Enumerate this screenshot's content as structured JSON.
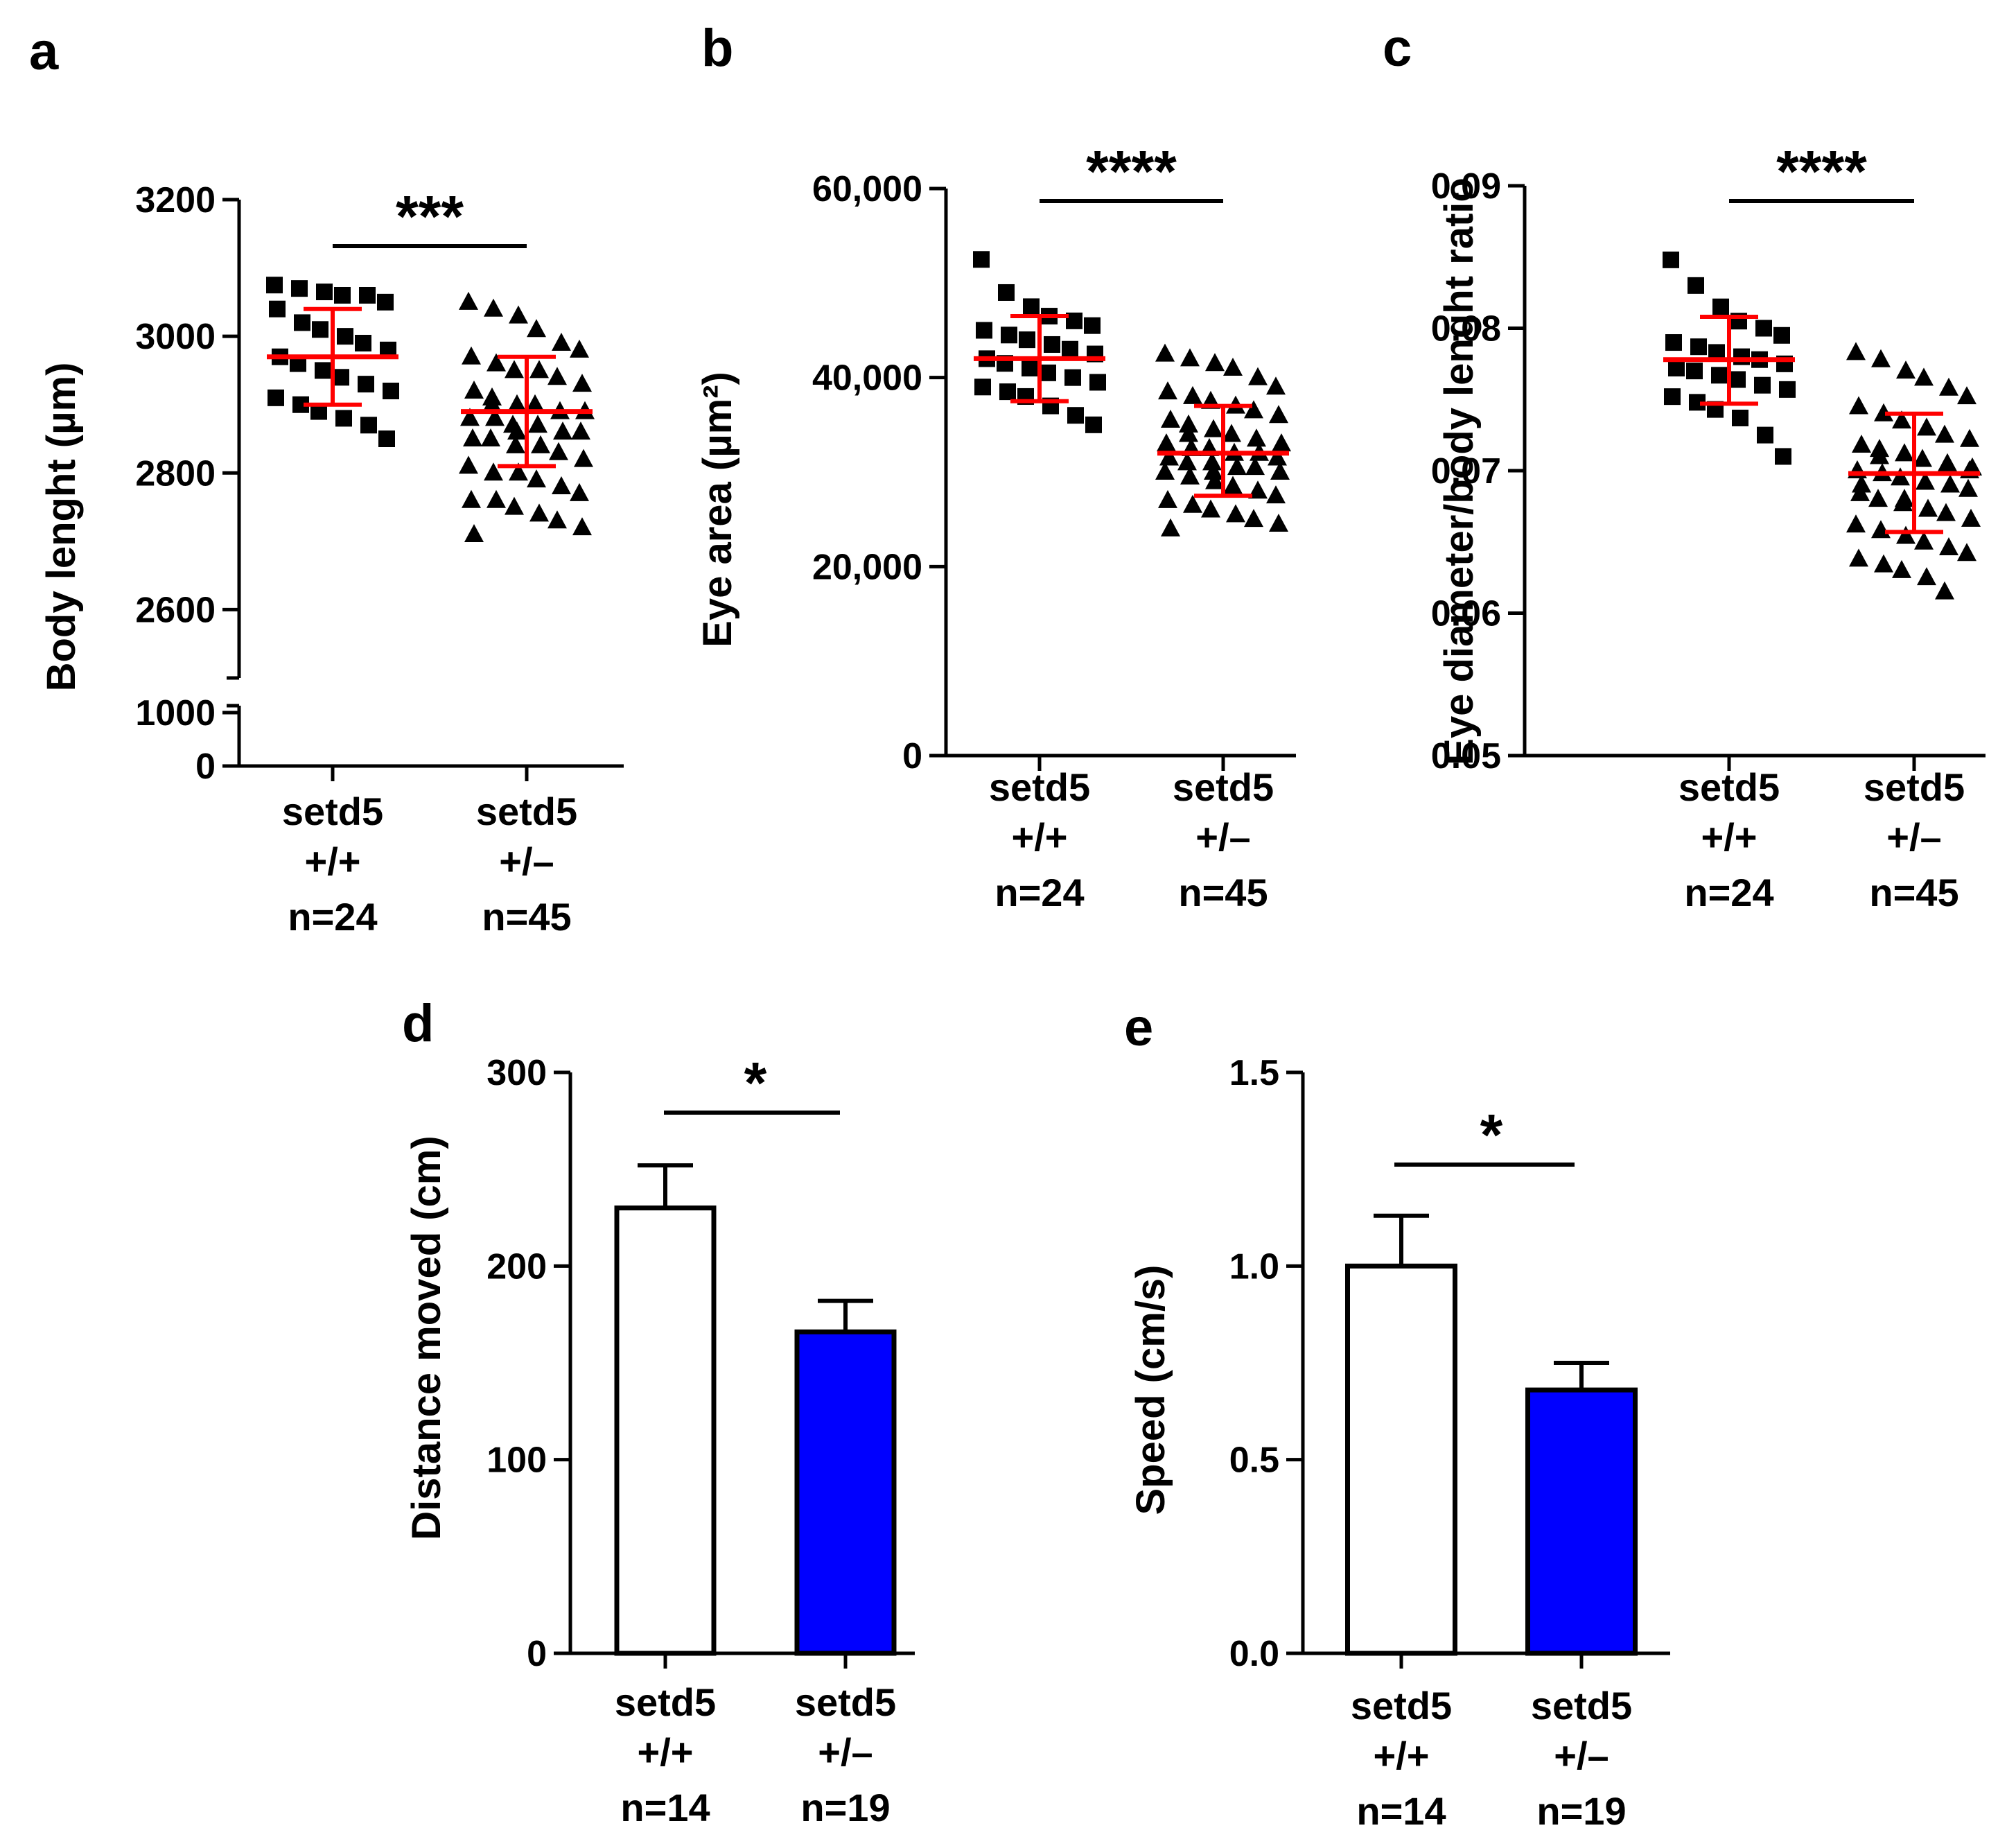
{
  "colors": {
    "axis": "#000000",
    "marker": "#000000",
    "mean_sd": "#ff0000",
    "bar_wt": "#ffffff",
    "bar_het": "#0000ff"
  },
  "chart_data": [
    {
      "panel": "a",
      "type": "scatter",
      "ylabel": "Body lenght (µm)",
      "broken_axis": true,
      "ylim_lower": [
        0,
        1000
      ],
      "ylim_upper": [
        2500,
        3200
      ],
      "yticks_lower": [
        "0",
        "1000"
      ],
      "yticks_upper": [
        "2600",
        "2800",
        "3000",
        "3200"
      ],
      "yticks_lower_values": [
        0,
        1000
      ],
      "yticks_upper_values": [
        2600,
        2800,
        3000,
        3200
      ],
      "categories": [
        {
          "name": "setd5",
          "genotype": "+/+",
          "n": "n=24"
        },
        {
          "name": "setd5",
          "genotype": "+/–",
          "n": "n=45"
        }
      ],
      "significance": "***",
      "groups": [
        {
          "marker": "square",
          "mean": 2970,
          "sd_low": 2900,
          "sd_high": 3040,
          "values": [
            3075,
            3070,
            3065,
            3060,
            3060,
            3050,
            3040,
            3020,
            3010,
            3000,
            2990,
            2980,
            2970,
            2960,
            2950,
            2940,
            2930,
            2920,
            2910,
            2900,
            2890,
            2880,
            2870,
            2850
          ]
        },
        {
          "marker": "triangle",
          "mean": 2890,
          "sd_low": 2810,
          "sd_high": 2970,
          "values": [
            3050,
            3040,
            3030,
            3010,
            2990,
            2980,
            2970,
            2960,
            2950,
            2950,
            2940,
            2930,
            2920,
            2910,
            2900,
            2900,
            2890,
            2890,
            2880,
            2880,
            2870,
            2870,
            2860,
            2860,
            2850,
            2850,
            2840,
            2840,
            2830,
            2820,
            2810,
            2800,
            2800,
            2790,
            2780,
            2770,
            2760,
            2760,
            2750,
            2740,
            2730,
            2720,
            2710,
            2900,
            2860
          ]
        }
      ]
    },
    {
      "panel": "b",
      "type": "scatter",
      "ylabel": "Eye area (µm²)",
      "ylim": [
        0,
        60000
      ],
      "yticks": [
        "0",
        "20,000",
        "40,000",
        "60,000"
      ],
      "ytick_values": [
        0,
        20000,
        40000,
        60000
      ],
      "categories": [
        {
          "name": "setd5",
          "genotype": "+/+",
          "n": "n=24"
        },
        {
          "name": "setd5",
          "genotype": "+/–",
          "n": "n=45"
        }
      ],
      "significance": "****",
      "groups": [
        {
          "marker": "square",
          "mean": 42000,
          "sd_low": 37500,
          "sd_high": 46500,
          "values": [
            52500,
            49000,
            47500,
            46500,
            46000,
            45500,
            45000,
            44500,
            44000,
            43500,
            43000,
            42500,
            42000,
            41500,
            41000,
            40500,
            40000,
            39500,
            39000,
            38500,
            38000,
            37000,
            36000,
            35000
          ]
        },
        {
          "marker": "triangle",
          "mean": 32000,
          "sd_low": 27500,
          "sd_high": 37000,
          "values": [
            42500,
            42000,
            41500,
            41000,
            40000,
            39000,
            38500,
            38000,
            37500,
            37000,
            36500,
            36000,
            35500,
            35000,
            34500,
            34000,
            33500,
            33000,
            33000,
            32500,
            32500,
            32000,
            32000,
            31500,
            31500,
            31000,
            31000,
            30500,
            30500,
            30000,
            30000,
            29500,
            29000,
            28500,
            28000,
            27500,
            27000,
            26500,
            26000,
            25500,
            25000,
            24500,
            24000,
            34000,
            30000
          ]
        }
      ]
    },
    {
      "panel": "c",
      "type": "scatter",
      "ylabel": "Eye diameter/body lenght ratio",
      "ylim": [
        0.05,
        0.09
      ],
      "yticks": [
        "0.05",
        "0.06",
        "0.07",
        "0.08",
        "0.09"
      ],
      "ytick_values": [
        0.05,
        0.06,
        0.07,
        0.08,
        0.09
      ],
      "categories": [
        {
          "name": "setd5",
          "genotype": "+/+",
          "n": "n=24"
        },
        {
          "name": "setd5",
          "genotype": "+/–",
          "n": "n=45"
        }
      ],
      "significance": "****",
      "groups": [
        {
          "marker": "square",
          "mean": 0.0778,
          "sd_low": 0.0747,
          "sd_high": 0.0808,
          "values": [
            0.0848,
            0.083,
            0.0815,
            0.0805,
            0.08,
            0.0795,
            0.079,
            0.0787,
            0.0783,
            0.078,
            0.0778,
            0.0775,
            0.0772,
            0.077,
            0.0767,
            0.0764,
            0.076,
            0.0757,
            0.0752,
            0.0748,
            0.0743,
            0.0737,
            0.0725,
            0.071
          ]
        },
        {
          "marker": "triangle",
          "mean": 0.0698,
          "sd_low": 0.0657,
          "sd_high": 0.074,
          "values": [
            0.0783,
            0.0778,
            0.077,
            0.0765,
            0.0758,
            0.0752,
            0.0745,
            0.074,
            0.0735,
            0.073,
            0.0725,
            0.0722,
            0.0718,
            0.0715,
            0.0712,
            0.0708,
            0.0705,
            0.0702,
            0.07,
            0.0698,
            0.0695,
            0.0692,
            0.069,
            0.0687,
            0.0684,
            0.068,
            0.0677,
            0.0673,
            0.067,
            0.0666,
            0.0662,
            0.0658,
            0.0654,
            0.065,
            0.0646,
            0.0642,
            0.0638,
            0.0634,
            0.063,
            0.0625,
            0.0615,
            0.07,
            0.069,
            0.071,
            0.068
          ]
        }
      ]
    },
    {
      "panel": "d",
      "type": "bar",
      "ylabel": "Distance moved (cm)",
      "ylim": [
        0,
        300
      ],
      "yticks": [
        "0",
        "100",
        "200",
        "300"
      ],
      "ytick_values": [
        0,
        100,
        200,
        300
      ],
      "categories": [
        {
          "name": "setd5",
          "genotype": "+/+",
          "n": "n=14"
        },
        {
          "name": "setd5",
          "genotype": "+/–",
          "n": "n=19"
        }
      ],
      "significance": "*",
      "values": [
        230,
        166
      ],
      "errors": [
        22,
        16
      ]
    },
    {
      "panel": "e",
      "type": "bar",
      "ylabel": "Speed (cm/s)",
      "ylim": [
        0,
        1.5
      ],
      "yticks": [
        "0.0",
        "0.5",
        "1.0",
        "1.5"
      ],
      "ytick_values": [
        0,
        0.5,
        1.0,
        1.5
      ],
      "categories": [
        {
          "name": "setd5",
          "genotype": "+/+",
          "n": "n=14"
        },
        {
          "name": "setd5",
          "genotype": "+/–",
          "n": "n=19"
        }
      ],
      "significance": "*",
      "values": [
        1.0,
        0.68
      ],
      "errors": [
        0.13,
        0.07
      ]
    }
  ]
}
